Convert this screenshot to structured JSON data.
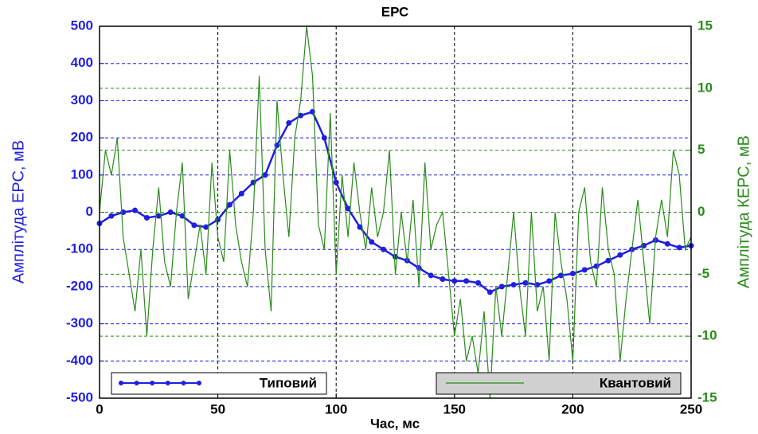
{
  "chart_data": {
    "type": "line",
    "title": "ЕРС",
    "x_label": "Час, мс",
    "y_label": "Амплітуда ЕРС, мВ",
    "y2_label": "Амплітуда КЕРС, мВ",
    "xlim": [
      0,
      250
    ],
    "xticks": [
      0,
      50,
      100,
      150,
      200,
      250
    ],
    "ylim": [
      -500,
      500
    ],
    "yticks": [
      -500,
      -400,
      -300,
      -200,
      -100,
      0,
      100,
      200,
      300,
      400,
      500
    ],
    "y2lim": [
      -15,
      15
    ],
    "y2ticks": [
      -15,
      -10,
      -5,
      0,
      5,
      10,
      15
    ],
    "grid": true,
    "legend": "bottom",
    "series": [
      {
        "name": "Типовий",
        "color": "#1f1fe0",
        "axis": "y",
        "marker": true,
        "x": [
          0,
          5,
          10,
          15,
          20,
          25,
          30,
          35,
          40,
          45,
          50,
          55,
          60,
          65,
          70,
          75,
          80,
          85,
          90,
          95,
          100,
          105,
          110,
          115,
          120,
          125,
          130,
          135,
          140,
          145,
          150,
          155,
          160,
          165,
          170,
          175,
          180,
          185,
          190,
          195,
          200,
          205,
          210,
          215,
          220,
          225,
          230,
          235,
          240,
          245,
          250
        ],
        "values": [
          -30,
          -10,
          0,
          5,
          -15,
          -10,
          0,
          -10,
          -35,
          -40,
          -20,
          20,
          50,
          80,
          100,
          180,
          240,
          260,
          270,
          200,
          80,
          10,
          -40,
          -80,
          -100,
          -120,
          -130,
          -150,
          -170,
          -180,
          -185,
          -185,
          -190,
          -215,
          -200,
          -195,
          -190,
          -195,
          -185,
          -170,
          -165,
          -155,
          -145,
          -130,
          -115,
          -100,
          -90,
          -75,
          -85,
          -95,
          -90
        ]
      },
      {
        "name": "Квантовий",
        "color": "#2a8a1a",
        "axis": "y2",
        "marker": false,
        "x": [
          0,
          2.5,
          5,
          7.5,
          10,
          12.5,
          15,
          17.5,
          20,
          22.5,
          25,
          27.5,
          30,
          32.5,
          35,
          37.5,
          40,
          42.5,
          45,
          47.5,
          50,
          52.5,
          55,
          57.5,
          60,
          62.5,
          65,
          67.5,
          70,
          72.5,
          75,
          77.5,
          80,
          82.5,
          85,
          87.5,
          90,
          92.5,
          95,
          97.5,
          100,
          102.5,
          105,
          107.5,
          110,
          112.5,
          115,
          117.5,
          120,
          122.5,
          125,
          127.5,
          130,
          132.5,
          135,
          137.5,
          140,
          142.5,
          145,
          147.5,
          150,
          152.5,
          155,
          157.5,
          160,
          162.5,
          165,
          167.5,
          170,
          172.5,
          175,
          177.5,
          180,
          182.5,
          185,
          187.5,
          190,
          192.5,
          195,
          197.5,
          200,
          202.5,
          205,
          207.5,
          210,
          212.5,
          215,
          217.5,
          220,
          222.5,
          225,
          227.5,
          230,
          232.5,
          235,
          237.5,
          240,
          242.5,
          245,
          247.5,
          250
        ],
        "values": [
          0,
          5,
          3,
          6,
          -2,
          -5,
          -8,
          -3,
          -10,
          -3,
          2,
          -4,
          -6,
          0,
          4,
          -7,
          -4,
          -1,
          -5,
          4,
          -2,
          -4,
          5,
          -1,
          -4,
          -6,
          0,
          11,
          -3,
          -8,
          9,
          3,
          -2,
          6,
          9,
          15,
          11,
          -1,
          -3,
          8,
          -5,
          3,
          -2,
          4,
          0,
          -3,
          2,
          -2,
          0,
          5,
          -5,
          0,
          -4,
          1,
          -6,
          4,
          -3,
          -1,
          0,
          -5,
          -10,
          -7,
          -12,
          -10,
          -13,
          -8,
          -15,
          -6,
          -10,
          -5,
          0,
          -6,
          -10,
          0,
          -8,
          -6,
          -12,
          0,
          -4,
          -7,
          -12,
          0,
          2,
          -4,
          -6,
          2,
          -3,
          -5,
          -12,
          -7,
          -3,
          1,
          -4,
          -9,
          -2,
          1,
          -2,
          5,
          3,
          -3,
          -2
        ]
      }
    ]
  }
}
